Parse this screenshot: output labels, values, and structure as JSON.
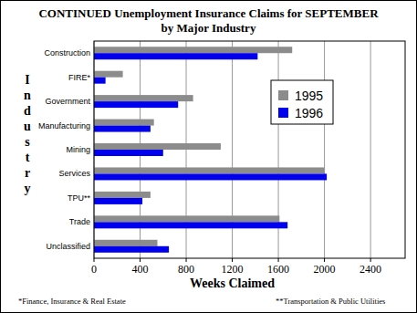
{
  "chart_data": {
    "type": "bar",
    "orientation": "horizontal",
    "title": "CONTINUED Unemployment Insurance Claims for SEPTEMBER",
    "subtitle": "by Major Industry",
    "x_label": "Weeks Claimed",
    "y_label": "Industry",
    "annotations": [
      "*Finance, Insurance & Real Estate",
      "**Transportation & Public Utilities"
    ],
    "categories": [
      "Construction",
      "FIRE*",
      "Government",
      "Manufacturing",
      "Mining",
      "Services",
      "TPU**",
      "Trade",
      "Unclassified"
    ],
    "series": [
      {
        "name": "1995",
        "color": "#8c8c8c",
        "values": [
          1720,
          250,
          860,
          520,
          1100,
          2000,
          490,
          1610,
          550
        ]
      },
      {
        "name": "1996",
        "color": "#0000ee",
        "values": [
          1420,
          100,
          730,
          490,
          600,
          2020,
          420,
          1680,
          650
        ]
      }
    ],
    "xlim": [
      0,
      2700
    ],
    "xticks": [
      0,
      400,
      800,
      1200,
      1600,
      2000,
      2400
    ],
    "grid": true,
    "legend": "upper right"
  }
}
